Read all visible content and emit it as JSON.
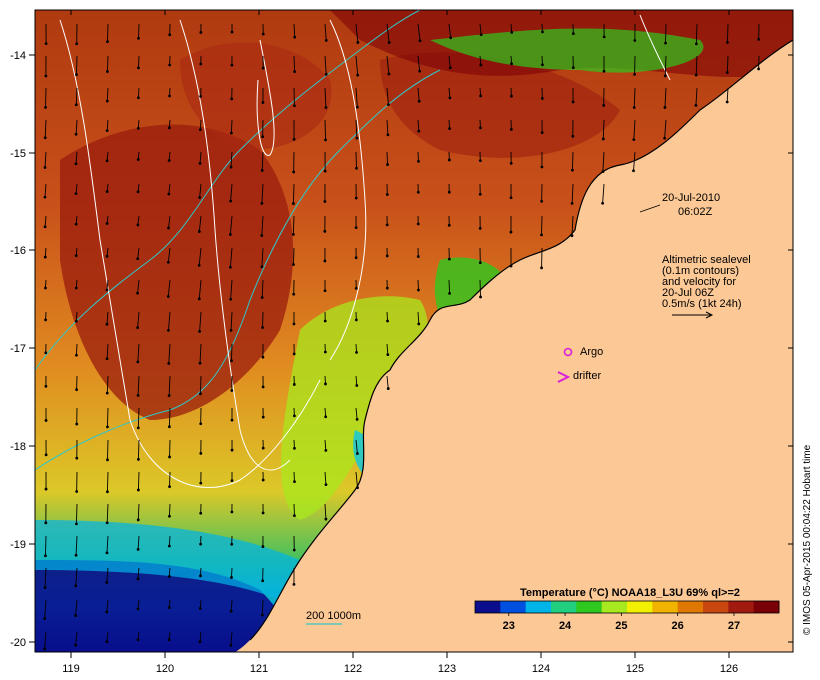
{
  "map": {
    "axes": {
      "lon_ticks": [
        "119",
        "120",
        "121",
        "122",
        "123",
        "124",
        "125",
        "126"
      ],
      "lat_ticks": [
        "-14",
        "-15",
        "-16",
        "-17",
        "-18",
        "-19",
        "-20"
      ]
    },
    "timestamp": {
      "date": "20-Jul-2010",
      "time": "06:02Z"
    },
    "altimetry_note": {
      "lines": [
        "Altimetric sealevel",
        "(0.1m contours)",
        "and velocity for",
        "20-Jul 06Z",
        "0.5m/s (1kt 24h)"
      ]
    },
    "markers": {
      "argo_label": "Argo",
      "drifter_label": "drifter"
    },
    "bathymetry_key": {
      "label": "200  1000m"
    },
    "colorbar": {
      "title": "Temperature (°C) NOAA18_L3U 69% ql>=2",
      "ticks": [
        "23",
        "24",
        "25",
        "26",
        "27"
      ],
      "ticks_values": [
        23,
        24,
        25,
        26,
        27
      ],
      "range": [
        22.4,
        27.8
      ],
      "colors": [
        "#0a0e8c",
        "#0050e0",
        "#00b4e8",
        "#20d080",
        "#2ec81e",
        "#a8e81e",
        "#f0f000",
        "#f0b400",
        "#e07800",
        "#c84810",
        "#a01a10",
        "#7a0008"
      ]
    },
    "credit": "© IMOS 05-Apr-2015 00:04:22 Hobart time",
    "colors": {
      "land": "#fcc896",
      "argo": "#d820d8",
      "drifter": "#d820d8",
      "contour": "#ffffff",
      "isobath": "#30c8c8",
      "vector": "#000000"
    }
  }
}
